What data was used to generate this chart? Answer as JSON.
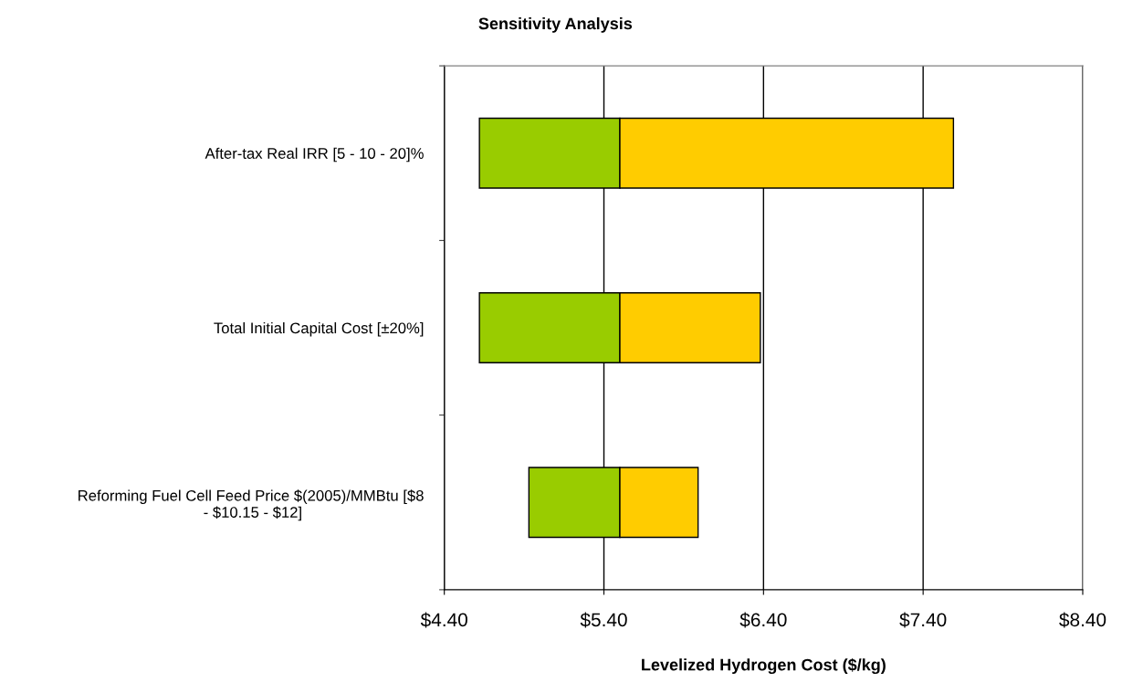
{
  "chart_data": {
    "type": "bar",
    "orientation": "horizontal",
    "title": "Sensitivity Analysis",
    "xlabel": "Levelized Hydrogen Cost ($/kg)",
    "categories": [
      "After-tax Real IRR [5 - 10 - 20]%",
      "Total Initial Capital Cost [±20%]",
      "Reforming Fuel Cell Feed Price $(2005)/MMBtu [$8\n - $10.15 - $12]"
    ],
    "series": [
      {
        "color": "#99cc00",
        "base": [
          4.62,
          4.62,
          4.93
        ],
        "values": [
          0.88,
          0.88,
          0.57
        ]
      },
      {
        "color": "#ffcc00",
        "base": [
          5.5,
          5.5,
          5.5
        ],
        "values": [
          2.09,
          0.88,
          0.49
        ]
      }
    ],
    "xlim": [
      4.4,
      8.4
    ],
    "xticks": [
      {
        "value": 4.4,
        "label": "$4.40"
      },
      {
        "value": 5.4,
        "label": "$5.40"
      },
      {
        "value": 6.4,
        "label": "$6.40"
      },
      {
        "value": 7.4,
        "label": "$7.40"
      },
      {
        "value": 8.4,
        "label": "$8.40"
      }
    ],
    "grid": "x",
    "legend": false
  }
}
